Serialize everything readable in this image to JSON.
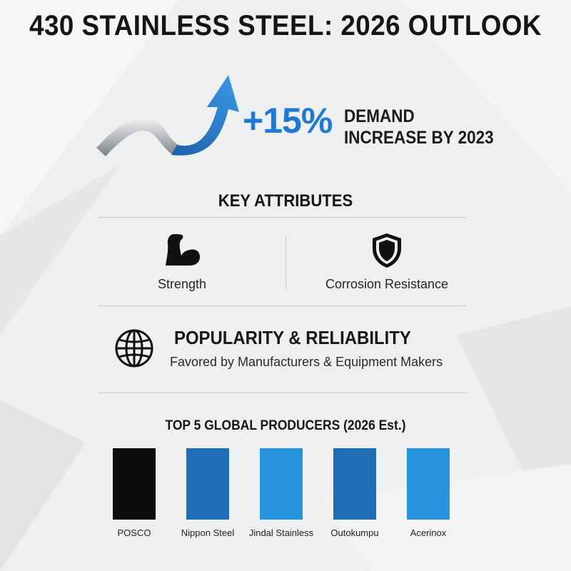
{
  "header": {
    "title": "430 STAINLESS STEEL: 2026 OUTLOOK"
  },
  "highlight": {
    "value": "+15%",
    "line1": "DEMAND",
    "line2": "INCREASE BY 2023",
    "icon": "rising-arrow-icon"
  },
  "key_attributes": {
    "title": "KEY ATTRIBUTES",
    "items": [
      {
        "label": "Strength",
        "icon": "flexed-arm-icon"
      },
      {
        "label": "Corrosion Resistance",
        "icon": "shield-icon"
      }
    ]
  },
  "popularity": {
    "title": "POPULARITY & RELIABILITY",
    "subtitle": "Favored by Manufacturers & Equipment Makers",
    "icon": "globe-icon"
  },
  "producers": {
    "title": "TOP 5 GLOBAL PRODUCERS (2026 Est.)"
  },
  "colors": {
    "accent": "#2179d2",
    "bar_black": "#0d0d0d",
    "bar_dark_blue": "#1f6db4",
    "bar_light_blue": "#2793dd"
  },
  "chart_data": {
    "type": "bar",
    "title": "TOP 5 GLOBAL PRODUCERS (2026 Est.)",
    "categories": [
      "POSCO",
      "Nippon Steel",
      "Jindal Stainless",
      "Outokumpu",
      "Acerinox"
    ],
    "values": [
      1,
      1,
      1,
      1,
      1
    ],
    "bar_colors": [
      "#0d0d0d",
      "#1f6db4",
      "#2793dd",
      "#1f6db4",
      "#2793dd"
    ],
    "ylim": [
      0,
      1
    ],
    "grid": false
  }
}
